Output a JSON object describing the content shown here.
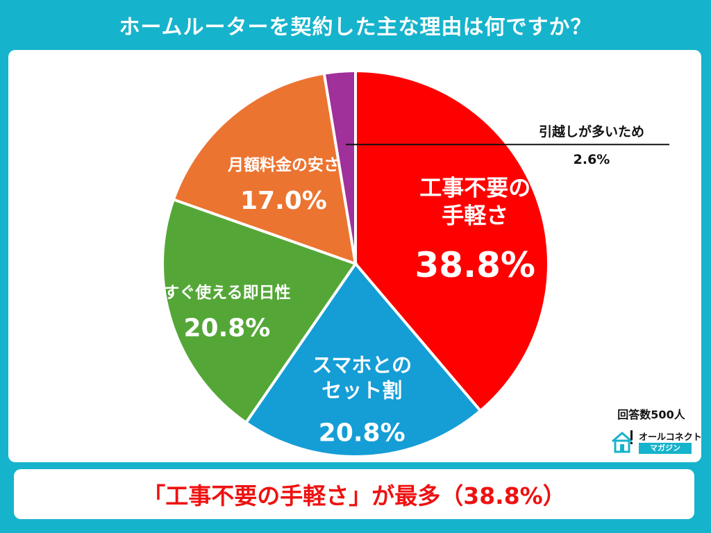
{
  "title": "ホームルーターを契約した主な理由は何ですか？",
  "note": "回答数500人",
  "logo": {
    "name": "オールコネクト",
    "sub": "マガジン"
  },
  "footer": "「工事不要の手軽さ」が最多（38.8%）",
  "colors": {
    "frame": "#16b3cc",
    "accent": "#ee1111"
  },
  "chart_data": {
    "type": "pie",
    "title": "ホームルーターを契約した主な理由は何ですか？",
    "slices": [
      {
        "label": [
          "工事不要の",
          "手軽さ"
        ],
        "value": 38.8,
        "display": "38.8%",
        "color": "#ff0000"
      },
      {
        "label": [
          "スマホとの",
          "セット割"
        ],
        "value": 20.8,
        "display": "20.8%",
        "color": "#159dd6"
      },
      {
        "label": [
          "すぐ使える即日性"
        ],
        "value": 20.8,
        "display": "20.8%",
        "color": "#54a737"
      },
      {
        "label": [
          "月額料金の安さ"
        ],
        "value": 17.0,
        "display": "17.0%",
        "color": "#ec7431"
      },
      {
        "label": [
          "引越しが多いため"
        ],
        "value": 2.6,
        "display": "2.6%",
        "color": "#a0309a"
      }
    ]
  }
}
